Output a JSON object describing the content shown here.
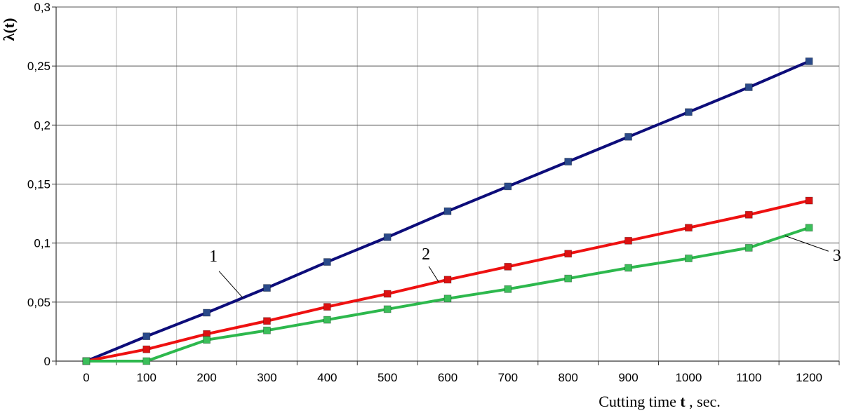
{
  "chart_data": {
    "type": "line",
    "title": "",
    "xlabel": "Cutting time ",
    "xlabel_bold": "t",
    "xlabel_suffix": " , sec.",
    "ylabel": "λ(t)",
    "x": [
      0,
      100,
      200,
      300,
      400,
      500,
      600,
      700,
      800,
      900,
      1000,
      1100,
      1200
    ],
    "x_tick_labels": [
      "0",
      "100",
      "200",
      "300",
      "400",
      "500",
      "600",
      "700",
      "800",
      "900",
      "1000",
      "1100",
      "1200"
    ],
    "y_tick_values": [
      0,
      0.05,
      0.1,
      0.15,
      0.2,
      0.25,
      0.3
    ],
    "y_tick_labels": [
      "0",
      "0,05",
      "0,1",
      "0,15",
      "0,2",
      "0,25",
      "0,3"
    ],
    "ylim": [
      0,
      0.3
    ],
    "grid": true,
    "legend": "none",
    "series": [
      {
        "label": "1",
        "color": "#0d0d7a",
        "marker_color": "#2a4a8a",
        "values": [
          0,
          0.021,
          0.041,
          0.062,
          0.084,
          0.105,
          0.127,
          0.148,
          0.169,
          0.19,
          0.211,
          0.232,
          0.254
        ]
      },
      {
        "label": "2",
        "color": "#ee1111",
        "marker_color": "#dd1111",
        "values": [
          0,
          0.01,
          0.023,
          0.034,
          0.046,
          0.057,
          0.069,
          0.08,
          0.091,
          0.102,
          0.113,
          0.124,
          0.136
        ]
      },
      {
        "label": "3",
        "color": "#2db84d",
        "marker_color": "#3bbf5a",
        "values": [
          0,
          0,
          0.018,
          0.026,
          0.035,
          0.044,
          0.053,
          0.061,
          0.07,
          0.079,
          0.087,
          0.096,
          0.113
        ]
      }
    ],
    "annotations": [
      "1",
      "2",
      "3"
    ]
  }
}
